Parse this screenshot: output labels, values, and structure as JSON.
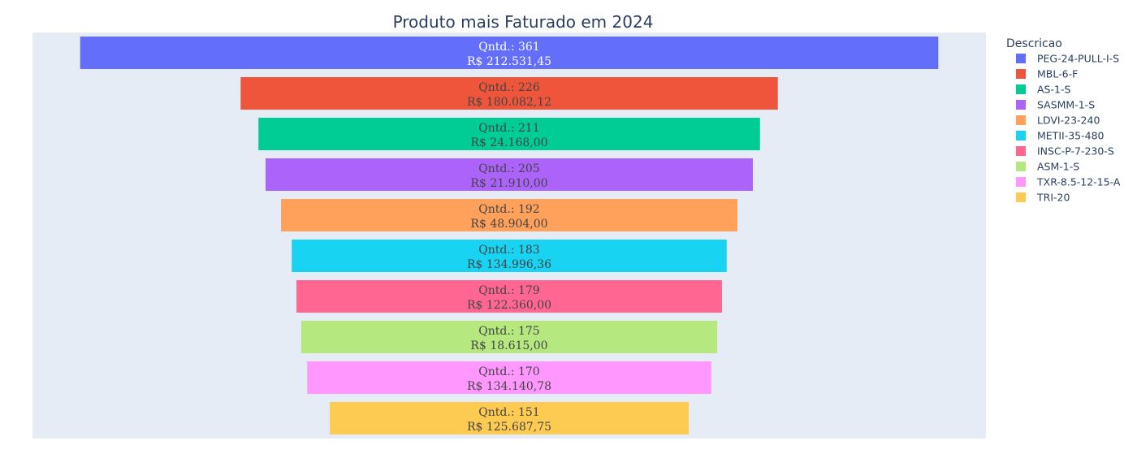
{
  "chart_data": {
    "type": "funnel",
    "title": "Produto mais Faturado em 2024",
    "legend_title": "Descricao",
    "legend_position": "right",
    "series": [
      {
        "name": "PEG-24-PULL-I-S",
        "value": 361,
        "revenue": "R$ 212.531,45",
        "color": "#636efa"
      },
      {
        "name": "MBL-6-F",
        "value": 226,
        "revenue": "R$ 180.082,12",
        "color": "#ef553b"
      },
      {
        "name": "AS-1-S",
        "value": 211,
        "revenue": "R$ 24.168,00",
        "color": "#00cc96"
      },
      {
        "name": "SASMM-1-S",
        "value": 205,
        "revenue": "R$ 21.910,00",
        "color": "#ab63fa"
      },
      {
        "name": "LDVI-23-240",
        "value": 192,
        "revenue": "R$ 48.904,00",
        "color": "#ffa15a"
      },
      {
        "name": "METII-35-480",
        "value": 183,
        "revenue": "R$ 134.996,36",
        "color": "#19d3f3"
      },
      {
        "name": "INSC-P-7-230-S",
        "value": 179,
        "revenue": "R$ 122.360,00",
        "color": "#ff6692"
      },
      {
        "name": "ASM-1-S",
        "value": 175,
        "revenue": "R$ 18.615,00",
        "color": "#b6e880"
      },
      {
        "name": "TXR-8.5-12-15-A",
        "value": 170,
        "revenue": "R$ 134.140,78",
        "color": "#ff97ff"
      },
      {
        "name": "TRI-20",
        "value": 151,
        "revenue": "R$ 125.687,75",
        "color": "#fecb52"
      }
    ],
    "value_prefix": "Qntd.: ",
    "plot_background": "#e5ecf6"
  }
}
